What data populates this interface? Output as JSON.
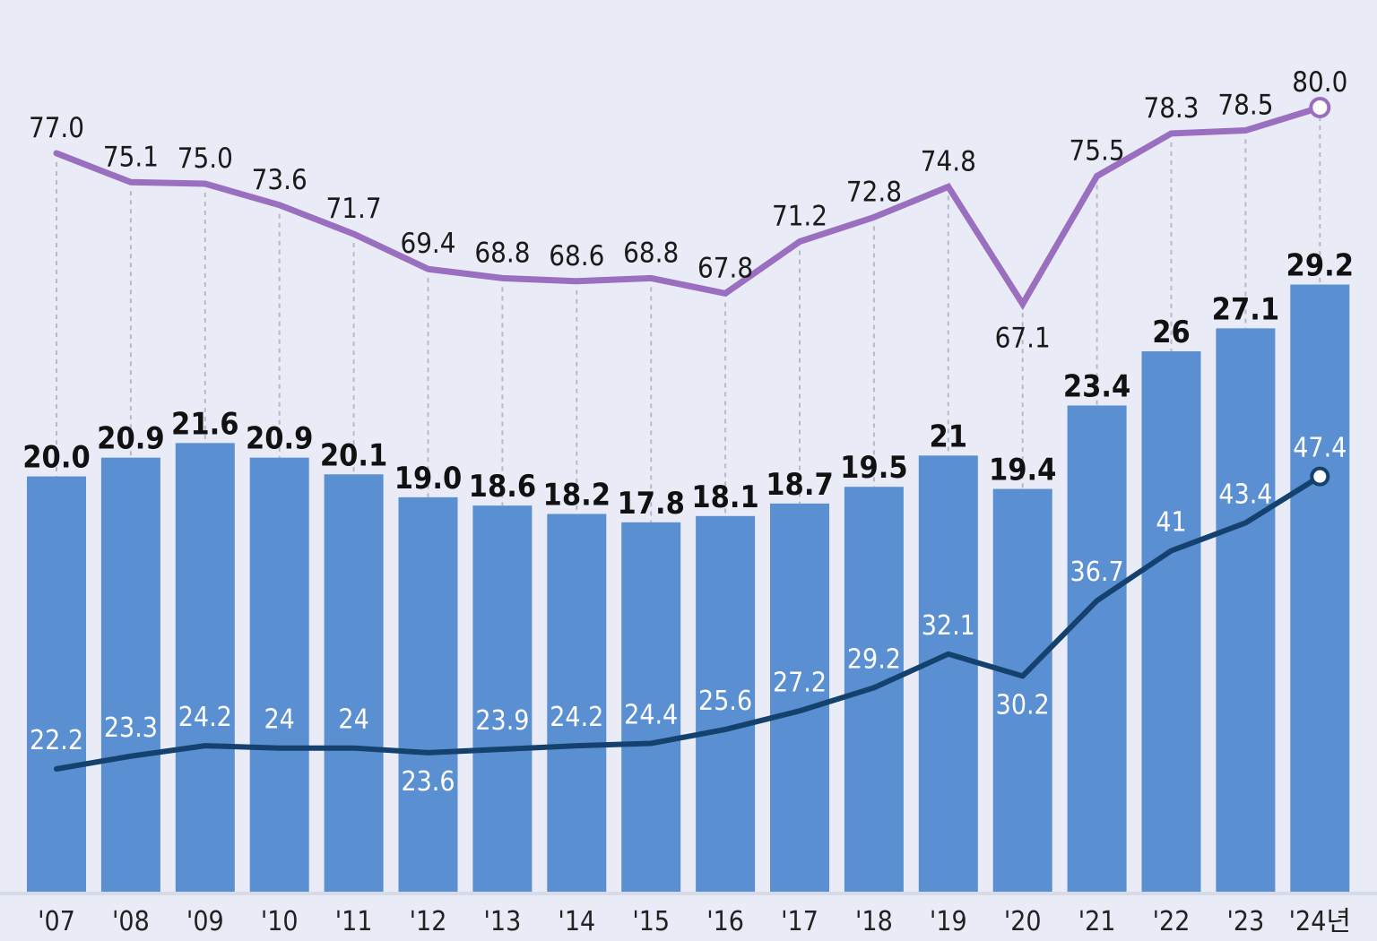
{
  "colors": {
    "background": "#e9ecf6",
    "bar": "#5a8fd1",
    "purple_line": "#9b6fc0",
    "navy_line": "#14416e",
    "guide": "#b8b8c4"
  },
  "chart_data": {
    "type": "bar",
    "categories": [
      "'07",
      "'08",
      "'09",
      "'10",
      "'11",
      "'12",
      "'13",
      "'14",
      "'15",
      "'16",
      "'17",
      "'18",
      "'19",
      "'20",
      "'21",
      "'22",
      "'23",
      "'24년"
    ],
    "bar_labels": [
      "20.0",
      "20.9",
      "21.6",
      "20.9",
      "20.1",
      "19.0",
      "18.6",
      "18.2",
      "17.8",
      "18.1",
      "18.7",
      "19.5",
      "21",
      "19.4",
      "23.4",
      "26",
      "27.1",
      "29.2"
    ],
    "series": [
      {
        "type": "bar",
        "values": [
          20.0,
          20.9,
          21.6,
          20.9,
          20.1,
          19.0,
          18.6,
          18.2,
          17.8,
          18.1,
          18.7,
          19.5,
          21,
          19.4,
          23.4,
          26,
          27.1,
          29.2
        ]
      },
      {
        "type": "line",
        "color": "#9b6fc0",
        "values": [
          77.0,
          75.1,
          75.0,
          73.6,
          71.7,
          69.4,
          68.8,
          68.6,
          68.8,
          67.8,
          71.2,
          72.8,
          74.8,
          67.1,
          75.5,
          78.3,
          78.5,
          80.0
        ],
        "labels": [
          "77.0",
          "75.1",
          "75.0",
          "73.6",
          "71.7",
          "69.4",
          "68.8",
          "68.6",
          "68.8",
          "67.8",
          "71.2",
          "72.8",
          "74.8",
          "67.1",
          "75.5",
          "78.3",
          "78.5",
          "80.0"
        ]
      },
      {
        "type": "line",
        "color": "#14416e",
        "values": [
          22.2,
          23.3,
          24.2,
          24,
          24,
          23.6,
          23.9,
          24.2,
          24.4,
          25.6,
          27.2,
          29.2,
          32.1,
          30.2,
          36.7,
          41,
          43.4,
          47.4
        ],
        "labels": [
          "22.2",
          "23.3",
          "24.2",
          "24",
          "24",
          "23.6",
          "23.9",
          "24.2",
          "24.4",
          "25.6",
          "27.2",
          "29.2",
          "32.1",
          "30.2",
          "36.7",
          "41",
          "43.4",
          "47.4"
        ]
      }
    ],
    "grid": false
  }
}
